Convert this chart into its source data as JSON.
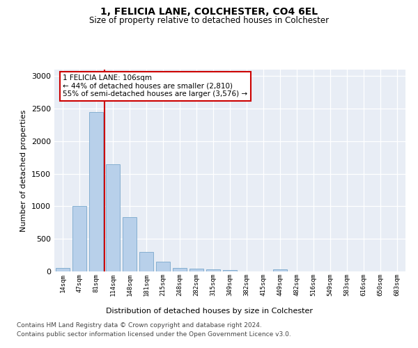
{
  "title": "1, FELICIA LANE, COLCHESTER, CO4 6EL",
  "subtitle": "Size of property relative to detached houses in Colchester",
  "xlabel": "Distribution of detached houses by size in Colchester",
  "ylabel": "Number of detached properties",
  "categories": [
    "14sqm",
    "47sqm",
    "81sqm",
    "114sqm",
    "148sqm",
    "181sqm",
    "215sqm",
    "248sqm",
    "282sqm",
    "315sqm",
    "349sqm",
    "382sqm",
    "415sqm",
    "449sqm",
    "482sqm",
    "516sqm",
    "549sqm",
    "583sqm",
    "616sqm",
    "650sqm",
    "683sqm"
  ],
  "values": [
    50,
    1000,
    2450,
    1650,
    830,
    300,
    150,
    55,
    40,
    30,
    20,
    0,
    0,
    30,
    0,
    0,
    0,
    0,
    0,
    0,
    0
  ],
  "bar_color": "#b8d0ea",
  "bar_edge_color": "#7aa8cc",
  "vline_x": 2.5,
  "vline_color": "#cc0000",
  "annotation_text": "1 FELICIA LANE: 106sqm\n← 44% of detached houses are smaller (2,810)\n55% of semi-detached houses are larger (3,576) →",
  "annotation_box_facecolor": "#ffffff",
  "annotation_box_edgecolor": "#cc0000",
  "ylim": [
    0,
    3100
  ],
  "yticks": [
    0,
    500,
    1000,
    1500,
    2000,
    2500,
    3000
  ],
  "bg_color": "#e8edf5",
  "fig_bg_color": "#ffffff",
  "footer_line1": "Contains HM Land Registry data © Crown copyright and database right 2024.",
  "footer_line2": "Contains public sector information licensed under the Open Government Licence v3.0."
}
